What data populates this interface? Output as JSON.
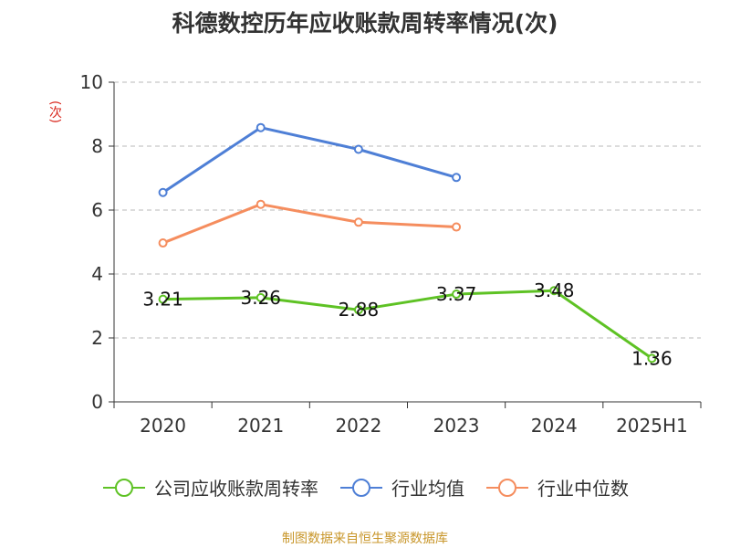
{
  "colors": {
    "revenue_turnover": "#5ec224",
    "industry_avg": "#4e7fd6",
    "industry_median": "#f58d5e",
    "ylabel": "#d9261c",
    "source": "#c8962a"
  },
  "chart_data": {
    "type": "line",
    "title": "科德数控历年应收账款周转率情况(次)",
    "ylabel": "(次)",
    "xlabel": "",
    "categories": [
      "2020",
      "2021",
      "2022",
      "2023",
      "2024",
      "2025H1"
    ],
    "ylim": [
      0,
      10
    ],
    "yticks": [
      0,
      2,
      4,
      6,
      8,
      10
    ],
    "grid": true,
    "legend_position": "bottom",
    "series": [
      {
        "name": "公司应收账款周转率",
        "color_key": "revenue_turnover",
        "values": [
          3.21,
          3.26,
          2.88,
          3.37,
          3.48,
          1.36
        ],
        "labels": [
          "3.21",
          "3.26",
          "2.88",
          "3.37",
          "3.48",
          "1.36"
        ]
      },
      {
        "name": "行业均值",
        "color_key": "industry_avg",
        "values": [
          6.55,
          8.58,
          7.9,
          7.02,
          null,
          null
        ]
      },
      {
        "name": "行业中位数",
        "color_key": "industry_median",
        "values": [
          4.97,
          6.18,
          5.62,
          5.47,
          null,
          null
        ]
      }
    ]
  },
  "source": "制图数据来自恒生聚源数据库"
}
